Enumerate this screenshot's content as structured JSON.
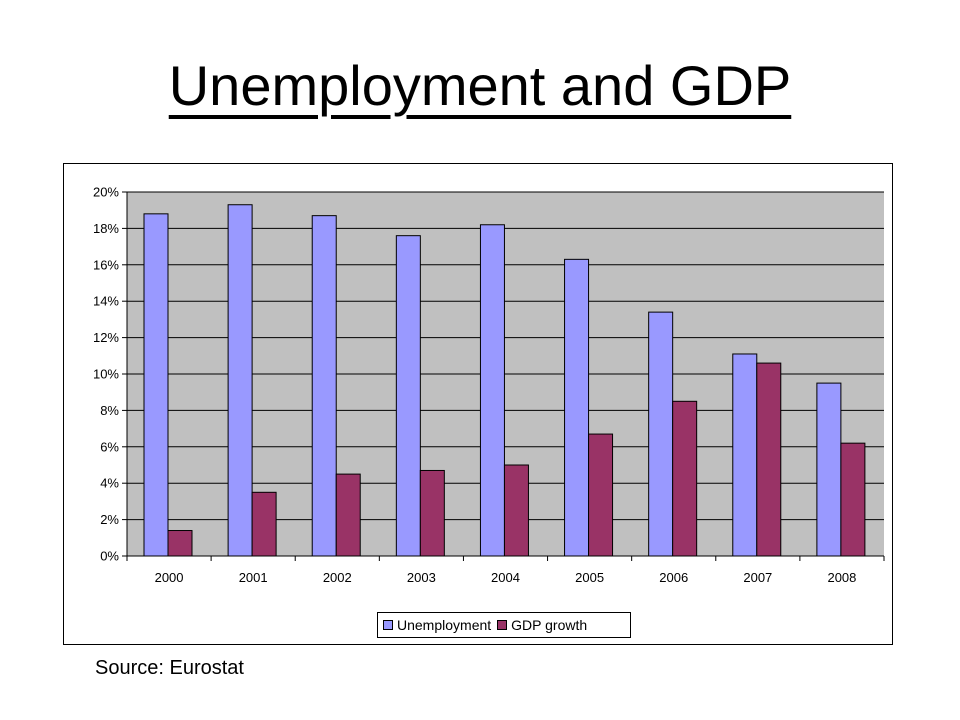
{
  "slide": {
    "title": "Unemployment and GDP",
    "source": "Source: Eurostat"
  },
  "chart_data": {
    "type": "bar",
    "title": "",
    "xlabel": "",
    "ylabel": "",
    "categories": [
      "2000",
      "2001",
      "2002",
      "2003",
      "2004",
      "2005",
      "2006",
      "2007",
      "2008"
    ],
    "series": [
      {
        "name": "Unemployment",
        "color": "#9999ff",
        "values": [
          18.8,
          19.3,
          18.7,
          17.6,
          18.2,
          16.3,
          13.4,
          11.1,
          9.5
        ]
      },
      {
        "name": "GDP growth",
        "color": "#993366",
        "values": [
          1.4,
          3.5,
          4.5,
          4.7,
          5.0,
          6.7,
          8.5,
          10.6,
          6.2
        ]
      }
    ],
    "ylim": [
      0,
      20
    ],
    "yticks": [
      "0%",
      "2%",
      "4%",
      "6%",
      "8%",
      "10%",
      "12%",
      "14%",
      "16%",
      "18%",
      "20%"
    ],
    "plot_background": "#c0c0c0",
    "grid": true,
    "legend_position": "bottom"
  }
}
